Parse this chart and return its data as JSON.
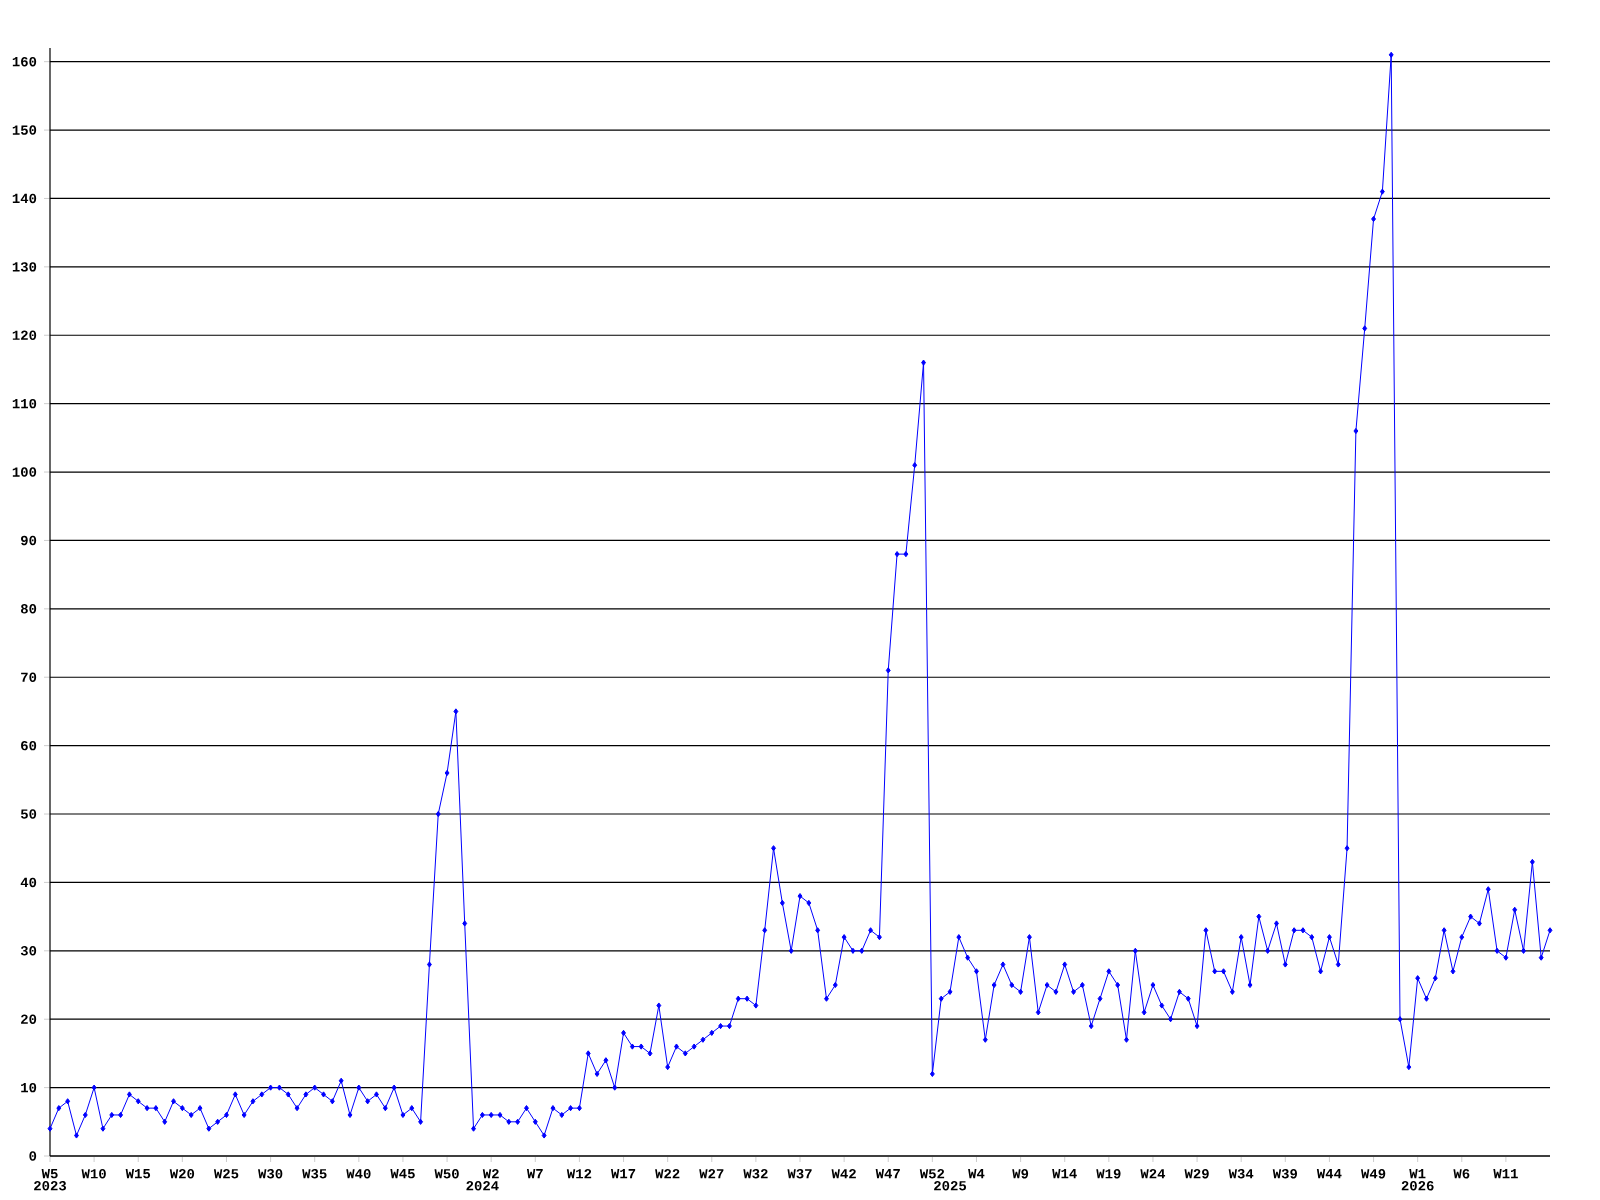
{
  "chart_data": {
    "type": "line",
    "categories": [
      "W5",
      null,
      null,
      null,
      null,
      "W10",
      null,
      null,
      null,
      null,
      "W15",
      null,
      null,
      null,
      null,
      "W20",
      null,
      null,
      null,
      null,
      "W25",
      null,
      null,
      null,
      null,
      "W30",
      null,
      null,
      null,
      null,
      "W35",
      null,
      null,
      null,
      null,
      "W40",
      null,
      null,
      null,
      null,
      "W45",
      null,
      null,
      null,
      null,
      "W50",
      null,
      null,
      null,
      null,
      "W2",
      null,
      null,
      null,
      null,
      "W7",
      null,
      null,
      null,
      null,
      "W12",
      null,
      null,
      null,
      null,
      "W17",
      null,
      null,
      null,
      null,
      "W22",
      null,
      null,
      null,
      null,
      "W27",
      null,
      null,
      null,
      null,
      "W32",
      null,
      null,
      null,
      null,
      "W37",
      null,
      null,
      null,
      null,
      "W42",
      null,
      null,
      null,
      null,
      "W47",
      null,
      null,
      null,
      null,
      "W52",
      null,
      null,
      null,
      null,
      "W4",
      null,
      null,
      null,
      null,
      "W9",
      null,
      null,
      null,
      null,
      "W14",
      null,
      null,
      null,
      null,
      "W19",
      null,
      null,
      null,
      null,
      "W24",
      null,
      null,
      null,
      null,
      "W29",
      null,
      null,
      null,
      null,
      "W34",
      null,
      null,
      null,
      null,
      "W39",
      null,
      null,
      null,
      null,
      "W44",
      null,
      null,
      null,
      null,
      "W49",
      null,
      null,
      null,
      null,
      "W1",
      null,
      null,
      null,
      null,
      "W6",
      null,
      null,
      null,
      null,
      "W11",
      null,
      null,
      null,
      null,
      null
    ],
    "series": [
      {
        "color": "#0000ff",
        "values": [
          4,
          7,
          8,
          3,
          6,
          10,
          4,
          6,
          6,
          9,
          8,
          7,
          7,
          5,
          8,
          7,
          6,
          7,
          4,
          5,
          6,
          9,
          6,
          8,
          9,
          10,
          10,
          9,
          7,
          9,
          10,
          9,
          8,
          11,
          6,
          10,
          8,
          9,
          7,
          10,
          6,
          7,
          5,
          28,
          50,
          56,
          65,
          34,
          4,
          6,
          6,
          6,
          5,
          5,
          7,
          5,
          3,
          7,
          6,
          7,
          7,
          15,
          12,
          14,
          10,
          18,
          16,
          16,
          15,
          22,
          13,
          16,
          15,
          16,
          17,
          18,
          19,
          19,
          23,
          23,
          22,
          33,
          45,
          37,
          30,
          38,
          37,
          33,
          23,
          25,
          32,
          30,
          30,
          33,
          32,
          71,
          88,
          88,
          101,
          116,
          12,
          23,
          24,
          32,
          29,
          27,
          17,
          25,
          28,
          25,
          24,
          32,
          21,
          25,
          24,
          28,
          24,
          25,
          19,
          23,
          27,
          25,
          17,
          30,
          21,
          25,
          22,
          20,
          24,
          23,
          19,
          33,
          27,
          27,
          24,
          32,
          25,
          35,
          30,
          34,
          28,
          33,
          33,
          32,
          27,
          32,
          28,
          45,
          106,
          121,
          137,
          141,
          161,
          20,
          13,
          26,
          23,
          26,
          33,
          27,
          32,
          35,
          34,
          39,
          30,
          29,
          36,
          30,
          43,
          29,
          33
        ]
      }
    ],
    "ylim": [
      0,
      162
    ],
    "yticks": [
      0,
      10,
      20,
      30,
      40,
      50,
      60,
      70,
      80,
      90,
      100,
      110,
      120,
      130,
      140,
      150,
      160
    ],
    "grid": "y",
    "marker": "diamond",
    "line_style": "solid",
    "annotations": [
      "2023",
      "2024",
      "2025",
      "2026"
    ]
  }
}
